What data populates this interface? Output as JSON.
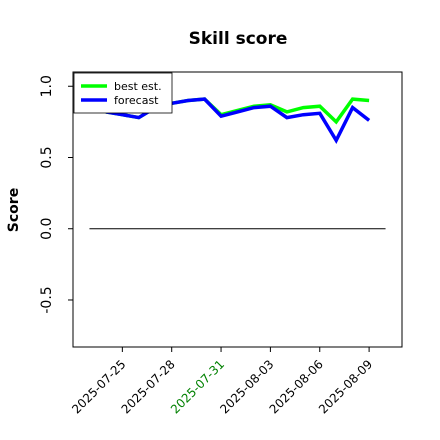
{
  "chart_data": {
    "type": "line",
    "title": "Skill score",
    "ylabel": "Score",
    "x": [
      "2025-07-24",
      "2025-07-25",
      "2025-07-26",
      "2025-07-27",
      "2025-07-28",
      "2025-07-29",
      "2025-07-30",
      "2025-07-31",
      "2025-08-01",
      "2025-08-02",
      "2025-08-03",
      "2025-08-04",
      "2025-08-05",
      "2025-08-06",
      "2025-08-07",
      "2025-08-08",
      "2025-08-09"
    ],
    "series": [
      {
        "name": "best est.",
        "color": "#00ff00",
        "values": [
          0.82,
          0.8,
          0.78,
          0.85,
          0.88,
          0.9,
          0.91,
          0.8,
          0.83,
          0.86,
          0.87,
          0.82,
          0.85,
          0.86,
          0.75,
          0.91,
          0.9
        ]
      },
      {
        "name": "forecast",
        "color": "#0000ff",
        "values": [
          0.82,
          0.8,
          0.78,
          0.85,
          0.88,
          0.9,
          0.91,
          0.79,
          0.82,
          0.85,
          0.86,
          0.78,
          0.8,
          0.81,
          0.62,
          0.85,
          0.76
        ]
      }
    ],
    "hline": {
      "y": 0,
      "x": [
        "2025-07-23",
        "2025-08-10"
      ],
      "color": "#000000"
    },
    "xlim": [
      "2025-07-22",
      "2025-08-11"
    ],
    "xticks": [
      {
        "value": "2025-07-25",
        "label": "2025-07-25",
        "color": "#000000"
      },
      {
        "value": "2025-07-28",
        "label": "2025-07-28",
        "color": "#000000"
      },
      {
        "value": "2025-07-31",
        "label": "2025-07-31",
        "color": "#008000"
      },
      {
        "value": "2025-08-03",
        "label": "2025-08-03",
        "color": "#000000"
      },
      {
        "value": "2025-08-06",
        "label": "2025-08-06",
        "color": "#000000"
      },
      {
        "value": "2025-08-09",
        "label": "2025-08-09",
        "color": "#000000"
      }
    ],
    "ylim": [
      -0.83,
      1.1
    ],
    "yticks": [
      {
        "value": -0.5,
        "label": "-0.5"
      },
      {
        "value": 0,
        "label": "0.0"
      },
      {
        "value": 0.5,
        "label": "0.5"
      },
      {
        "value": 1,
        "label": "1.0"
      }
    ],
    "legend": "upper left",
    "grid": false
  }
}
